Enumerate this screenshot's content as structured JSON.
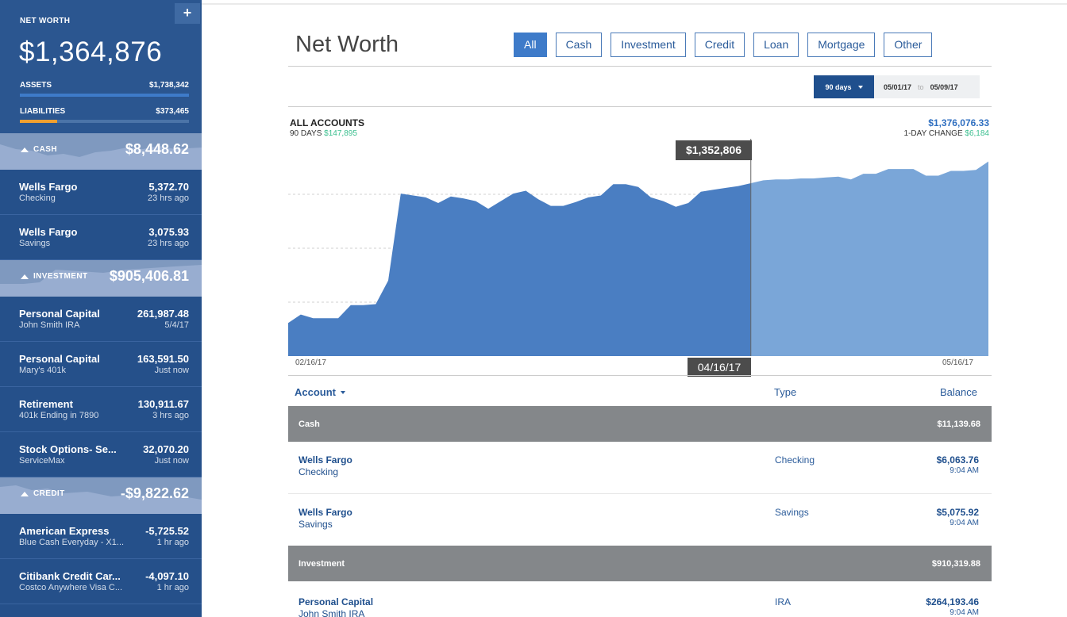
{
  "sidebar": {
    "net_worth_label": "NET WORTH",
    "add_icon": "+",
    "net_worth_value": "$1,364,876",
    "assets_label": "ASSETS",
    "assets_value": "$1,738,342",
    "assets_fill": 1.0,
    "liabilities_label": "LIABILITIES",
    "liabilities_value": "$373,465",
    "liabilities_fill": 0.22,
    "sections": {
      "cash": {
        "label": "CASH",
        "value": "$8,448.62",
        "accounts": [
          {
            "name": "Wells Fargo",
            "sub": "Checking",
            "amount": "5,372.70",
            "updated": "23 hrs ago"
          },
          {
            "name": "Wells Fargo",
            "sub": "Savings",
            "amount": "3,075.93",
            "updated": "23 hrs ago"
          }
        ]
      },
      "investment": {
        "label": "INVESTMENT",
        "value": "$905,406.81",
        "accounts": [
          {
            "name": "Personal Capital",
            "sub": "John Smith IRA",
            "amount": "261,987.48",
            "updated": "5/4/17"
          },
          {
            "name": "Personal Capital",
            "sub": "Mary's 401k",
            "amount": "163,591.50",
            "updated": "Just now"
          },
          {
            "name": "Retirement",
            "sub": "401k Ending in 7890",
            "amount": "130,911.67",
            "updated": "3 hrs ago"
          },
          {
            "name": "Stock Options- Se...",
            "sub": "ServiceMax",
            "amount": "32,070.20",
            "updated": "Just now"
          }
        ]
      },
      "credit": {
        "label": "CREDIT",
        "value": "-$9,822.62",
        "accounts": [
          {
            "name": "American Express",
            "sub": "Blue Cash Everyday - X1...",
            "amount": "-5,725.52",
            "updated": "1 hr ago"
          },
          {
            "name": "Citibank Credit Car...",
            "sub": "Costco Anywhere Visa C...",
            "amount": "-4,097.10",
            "updated": "1 hr ago"
          }
        ]
      }
    }
  },
  "main": {
    "title": "Net Worth",
    "filters": [
      "All",
      "Cash",
      "Investment",
      "Credit",
      "Loan",
      "Mortgage",
      "Other"
    ],
    "active_filter": "All",
    "range": {
      "days": "90 days",
      "from": "05/01/17",
      "to_label": "to",
      "to": "05/09/17"
    },
    "summary": {
      "heading": "ALL ACCOUNTS",
      "days_label": "90 DAYS",
      "days_change": "$147,895",
      "total": "$1,376,076.33",
      "day_change_label": "1-DAY CHANGE",
      "day_change": "$6,184"
    },
    "tooltip": {
      "value": "$1,352,806",
      "date": "04/16/17"
    },
    "x_labels": {
      "start": "02/16/17",
      "end": "05/16/17"
    },
    "table": {
      "col_account": "Account",
      "col_type": "Type",
      "col_balance": "Balance",
      "groups": [
        {
          "label": "Cash",
          "total": "$11,139.68"
        },
        {
          "label": "Investment",
          "total": "$910,319.88"
        }
      ],
      "rows": [
        {
          "name": "Wells Fargo",
          "sub": "Checking",
          "type": "Checking",
          "balance": "$6,063.76",
          "time": "9:04 AM"
        },
        {
          "name": "Wells Fargo",
          "sub": "Savings",
          "type": "Savings",
          "balance": "$5,075.92",
          "time": "9:04 AM"
        },
        {
          "name": "Personal Capital",
          "sub": "John Smith IRA",
          "type": "IRA",
          "balance": "$264,193.46",
          "time": "9:04 AM"
        }
      ]
    }
  },
  "colors": {
    "sidebar_bg": "#25508a",
    "assets_bar": "#3e7bc9",
    "liabilities_bar": "#f0a030",
    "chart_past": "#4a7ec2",
    "chart_future": "#7aa6d8",
    "positive": "#3bbf8f"
  },
  "chart_data": {
    "type": "area",
    "title": "",
    "xlabel": "",
    "ylabel": "",
    "x_labels": [
      "02/16/17",
      "05/16/17"
    ],
    "highlight": {
      "x": "04/16/17",
      "value": 1352806
    },
    "grid": "dashed horizontal",
    "series": [
      {
        "values": [
          1185,
          1194,
          1190,
          1190,
          1190,
          1204,
          1204,
          1205,
          1230,
          1322,
          1320,
          1318,
          1312,
          1319,
          1317,
          1314,
          1306,
          1314,
          1322,
          1325,
          1316,
          1309,
          1309,
          1313,
          1318,
          1320,
          1332,
          1332,
          1329,
          1318,
          1314,
          1308,
          1312,
          1324,
          1326,
          1328,
          1330,
          1333,
          1336,
          1337,
          1337,
          1338,
          1338,
          1339,
          1340,
          1337,
          1343,
          1343,
          1348,
          1348,
          1348,
          1341,
          1341,
          1346,
          1346,
          1347,
          1356
        ]
      }
    ]
  }
}
